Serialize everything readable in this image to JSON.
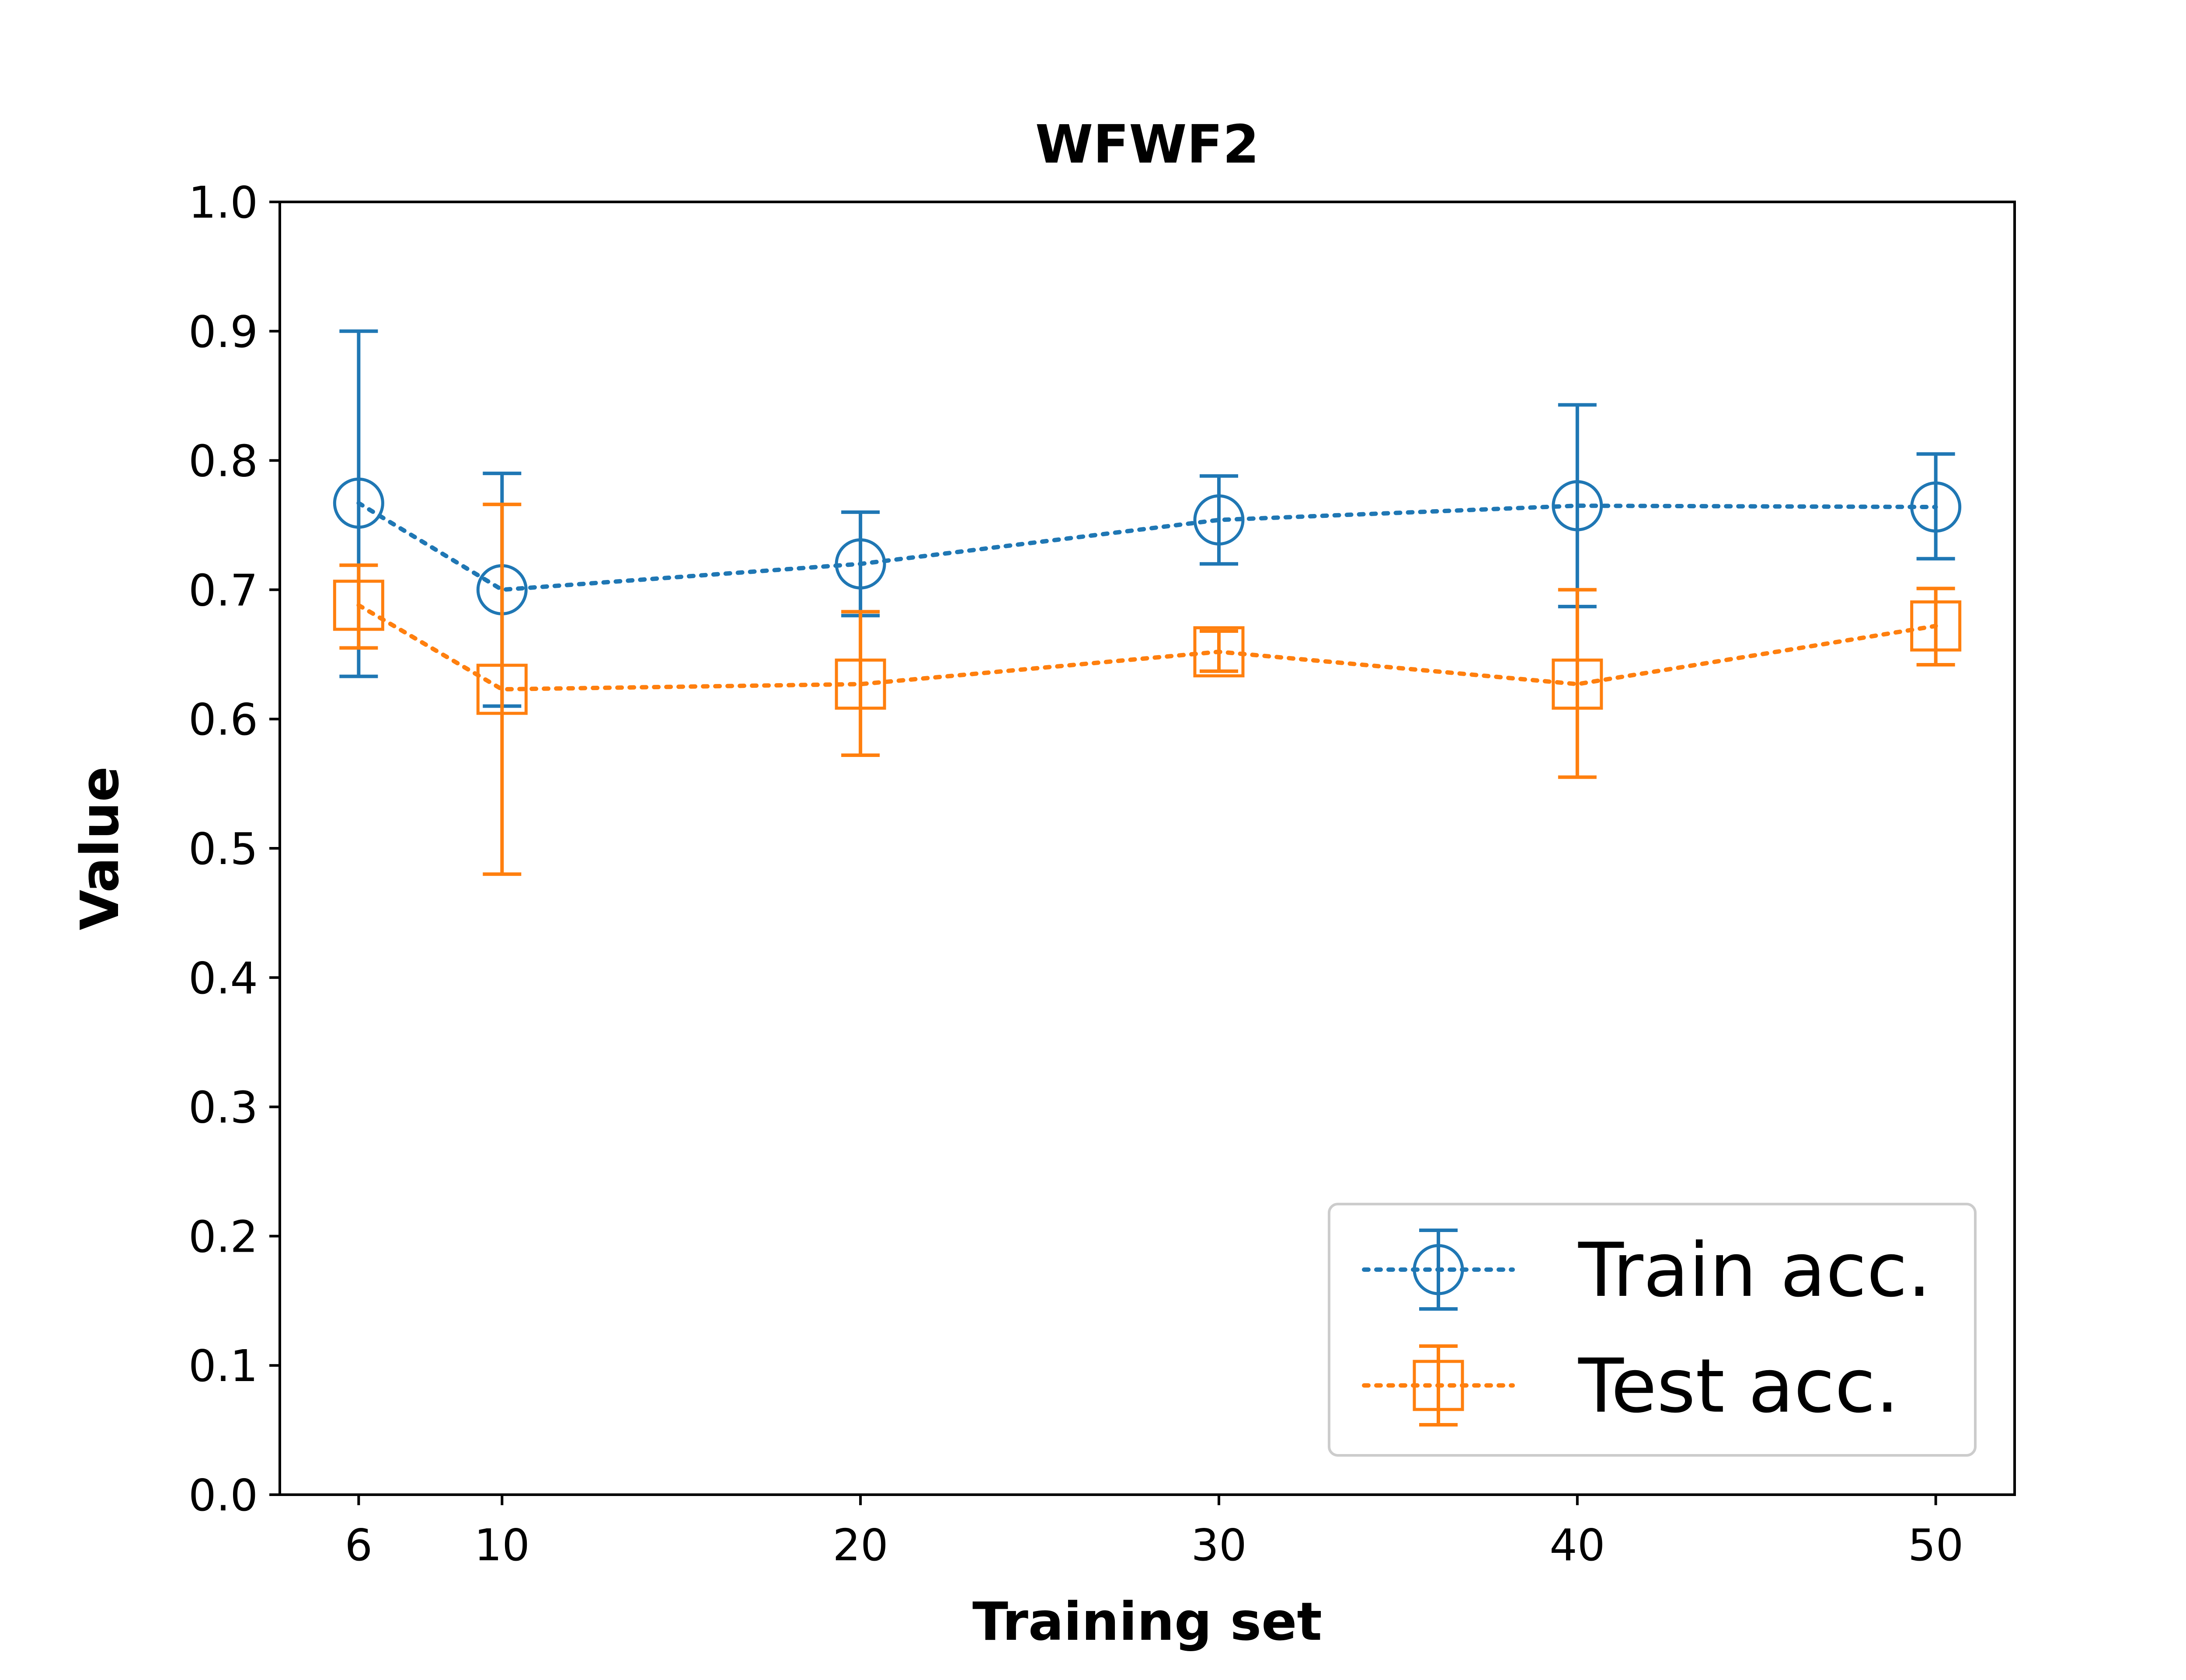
{
  "chart_data": {
    "type": "line",
    "title": "WFWF2",
    "xlabel": "Training set",
    "ylabel": "Value",
    "x": [
      6,
      10,
      20,
      30,
      40,
      50
    ],
    "xticks": [
      "6",
      "10",
      "20",
      "30",
      "40",
      "50"
    ],
    "yticks": [
      "0.0",
      "0.1",
      "0.2",
      "0.3",
      "0.4",
      "0.5",
      "0.6",
      "0.7",
      "0.8",
      "0.9",
      "1.0"
    ],
    "xlim": [
      3.8,
      52.2
    ],
    "ylim": [
      0,
      1
    ],
    "grid": false,
    "legend_position": "lower right",
    "series": [
      {
        "name": "Train acc.",
        "color": "#1f77b4",
        "marker": "circle",
        "linestyle": "dotted",
        "values": [
          0.767,
          0.7,
          0.72,
          0.754,
          0.765,
          0.764
        ],
        "err_low": [
          0.633,
          0.61,
          0.68,
          0.72,
          0.687,
          0.724
        ],
        "err_high": [
          0.9,
          0.79,
          0.76,
          0.788,
          0.843,
          0.805
        ]
      },
      {
        "name": "Test acc.",
        "color": "#ff7f0e",
        "marker": "square",
        "linestyle": "dotted",
        "values": [
          0.688,
          0.623,
          0.627,
          0.652,
          0.627,
          0.672
        ],
        "err_low": [
          0.655,
          0.48,
          0.572,
          0.637,
          0.555,
          0.642
        ],
        "err_high": [
          0.719,
          0.766,
          0.683,
          0.668,
          0.7,
          0.701
        ]
      }
    ]
  }
}
